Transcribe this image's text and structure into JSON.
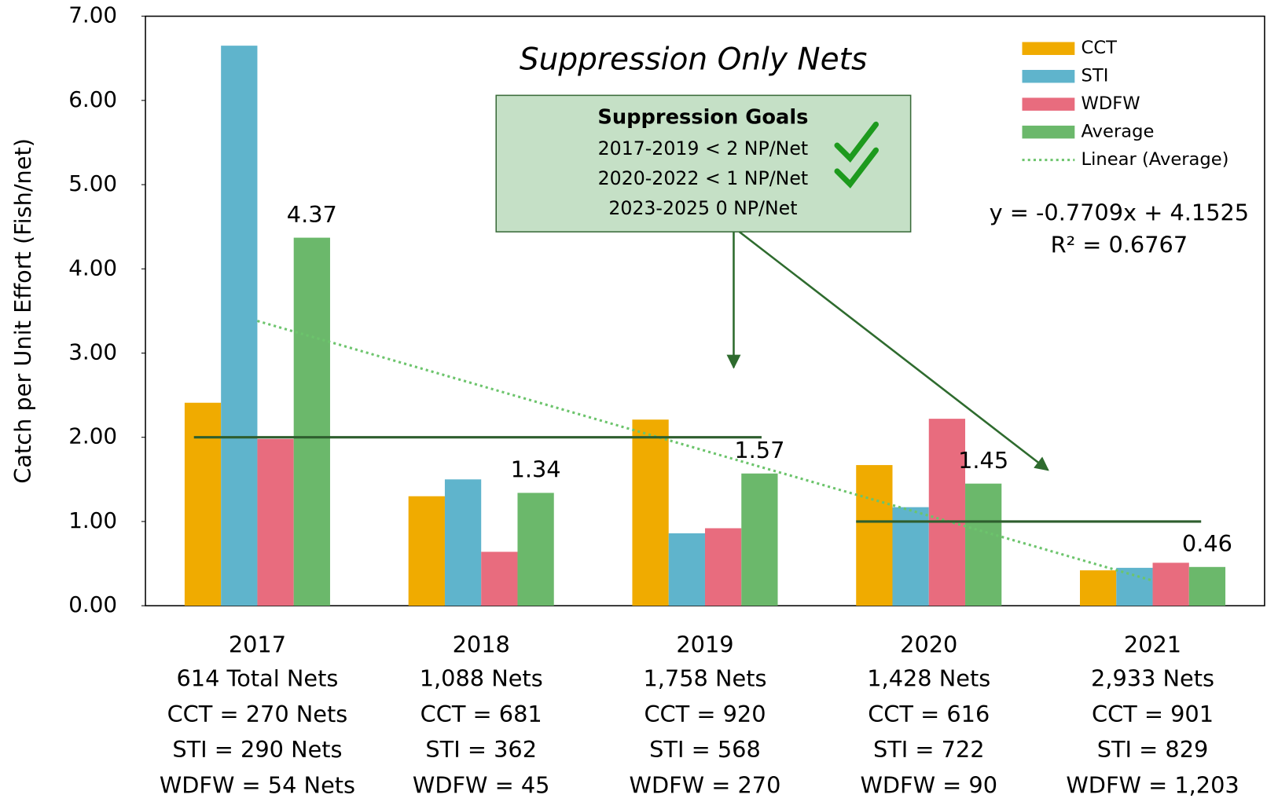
{
  "chart_data": {
    "type": "bar",
    "title": "Suppression Only Nets",
    "y_label": "Catch per Unit Effort (Fish/net)",
    "categories": [
      "2017",
      "2018",
      "2019",
      "2020",
      "2021"
    ],
    "category_details": [
      [
        "614 Total Nets",
        "CCT = 270 Nets",
        "STI = 290 Nets",
        "WDFW = 54 Nets"
      ],
      [
        "1,088 Nets",
        "CCT = 681",
        "STI = 362",
        "WDFW = 45"
      ],
      [
        "1,758 Nets",
        "CCT = 920",
        "STI = 568",
        "WDFW = 270"
      ],
      [
        "1,428 Nets",
        "CCT = 616",
        "STI = 722",
        "WDFW = 90"
      ],
      [
        "2,933 Nets",
        "CCT = 901",
        "STI = 829",
        "WDFW = 1,203"
      ]
    ],
    "series": [
      {
        "name": "CCT",
        "color": "#f0ab00",
        "values": [
          2.41,
          1.3,
          2.21,
          1.67,
          0.42
        ]
      },
      {
        "name": "STI",
        "color": "#5fb4cc",
        "values": [
          6.65,
          1.5,
          0.86,
          1.17,
          0.45
        ]
      },
      {
        "name": "WDFW",
        "color": "#e86c7e",
        "values": [
          1.98,
          0.64,
          0.92,
          2.22,
          0.51
        ]
      },
      {
        "name": "Average",
        "color": "#6bb86b",
        "values": [
          4.37,
          1.34,
          1.57,
          1.45,
          0.46
        ],
        "data_labels": true
      }
    ],
    "trendline": {
      "name": "Linear (Average)",
      "color": "#6cc46c",
      "slope": -0.7709,
      "intercept": 4.1525,
      "equation": "y = -0.7709x + 4.1525",
      "r2": "R² = 0.6767"
    },
    "goals": {
      "title": "Suppression Goals",
      "items": [
        {
          "label": "2017-2019 < 2 NP/Net",
          "value": 2
        },
        {
          "label": "2020-2022 < 1 NP/Net",
          "value": 1
        },
        {
          "label": "2023-2025 0 NP/Net"
        }
      ]
    },
    "ylim": [
      0,
      7
    ],
    "yticks": [
      {
        "value": 0,
        "label": "0.00"
      },
      {
        "value": 1,
        "label": "1.00"
      },
      {
        "value": 2,
        "label": "2.00"
      },
      {
        "value": 3,
        "label": "3.00"
      },
      {
        "value": 4,
        "label": "4.00"
      },
      {
        "value": 5,
        "label": "5.00"
      },
      {
        "value": 6,
        "label": "6.00"
      },
      {
        "value": 7,
        "label": "7.00"
      }
    ],
    "legend": "top-right"
  }
}
